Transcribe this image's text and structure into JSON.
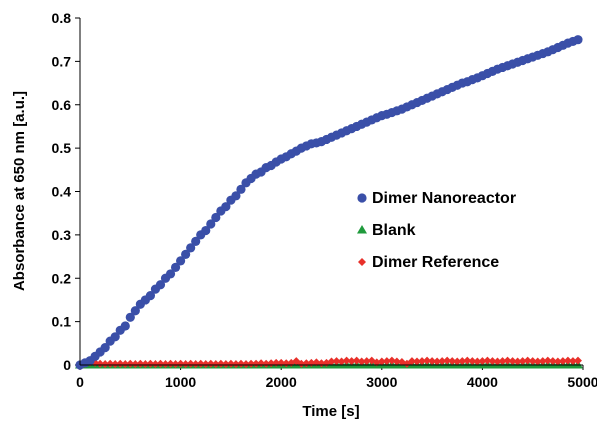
{
  "chart_data": {
    "type": "scatter",
    "title": "",
    "xlabel": "Time [s]",
    "ylabel": "Absorbance at 650 nm [a.u.]",
    "xlim": [
      0,
      5000
    ],
    "ylim": [
      0,
      0.8
    ],
    "x_ticks": [
      "0",
      "1000",
      "2000",
      "3000",
      "4000",
      "5000"
    ],
    "y_ticks": [
      "0",
      "0.1",
      "0.2",
      "0.3",
      "0.4",
      "0.5",
      "0.6",
      "0.7",
      "0.8"
    ],
    "grid": false,
    "legend_position": "center-right",
    "series": [
      {
        "name": "Dimer Nanoreactor",
        "marker": "circle",
        "color": "#3a4fa8",
        "x": [
          0,
          50,
          100,
          150,
          200,
          250,
          300,
          350,
          400,
          450,
          500,
          550,
          600,
          650,
          700,
          750,
          800,
          850,
          900,
          950,
          1000,
          1050,
          1100,
          1150,
          1200,
          1250,
          1300,
          1350,
          1400,
          1450,
          1500,
          1550,
          1600,
          1650,
          1700,
          1750,
          1800,
          1850,
          1900,
          1950,
          2000,
          2050,
          2100,
          2150,
          2200,
          2250,
          2300,
          2350,
          2400,
          2450,
          2500,
          2550,
          2600,
          2650,
          2700,
          2750,
          2800,
          2850,
          2900,
          2950,
          3000,
          3050,
          3100,
          3150,
          3200,
          3250,
          3300,
          3350,
          3400,
          3450,
          3500,
          3550,
          3600,
          3650,
          3700,
          3750,
          3800,
          3850,
          3900,
          3950,
          4000,
          4050,
          4100,
          4150,
          4200,
          4250,
          4300,
          4350,
          4400,
          4450,
          4500,
          4550,
          4600,
          4650,
          4700,
          4750,
          4800,
          4850,
          4900,
          4950
        ],
        "y": [
          0.0,
          0.005,
          0.01,
          0.02,
          0.03,
          0.04,
          0.055,
          0.065,
          0.08,
          0.09,
          0.11,
          0.125,
          0.14,
          0.15,
          0.16,
          0.175,
          0.185,
          0.2,
          0.21,
          0.225,
          0.24,
          0.255,
          0.27,
          0.285,
          0.3,
          0.31,
          0.325,
          0.34,
          0.355,
          0.365,
          0.38,
          0.39,
          0.405,
          0.42,
          0.43,
          0.44,
          0.445,
          0.455,
          0.46,
          0.468,
          0.475,
          0.48,
          0.487,
          0.493,
          0.5,
          0.505,
          0.51,
          0.512,
          0.515,
          0.52,
          0.525,
          0.53,
          0.535,
          0.54,
          0.545,
          0.55,
          0.555,
          0.56,
          0.565,
          0.57,
          0.575,
          0.578,
          0.582,
          0.586,
          0.59,
          0.595,
          0.6,
          0.605,
          0.61,
          0.615,
          0.62,
          0.625,
          0.63,
          0.635,
          0.64,
          0.645,
          0.65,
          0.653,
          0.658,
          0.662,
          0.667,
          0.672,
          0.677,
          0.682,
          0.686,
          0.69,
          0.694,
          0.698,
          0.702,
          0.706,
          0.71,
          0.714,
          0.718,
          0.722,
          0.727,
          0.732,
          0.737,
          0.742,
          0.746,
          0.75
        ]
      },
      {
        "name": "Blank",
        "marker": "triangle",
        "color": "#1f9a3c",
        "x": [
          0,
          50,
          100,
          150,
          200,
          250,
          300,
          350,
          400,
          450,
          500,
          550,
          600,
          650,
          700,
          750,
          800,
          850,
          900,
          950,
          1000,
          1050,
          1100,
          1150,
          1200,
          1250,
          1300,
          1350,
          1400,
          1450,
          1500,
          1550,
          1600,
          1650,
          1700,
          1750,
          1800,
          1850,
          1900,
          1950,
          2000,
          2050,
          2100,
          2150,
          2200,
          2250,
          2300,
          2350,
          2400,
          2450,
          2500,
          2550,
          2600,
          2650,
          2700,
          2750,
          2800,
          2850,
          2900,
          2950,
          3000,
          3050,
          3100,
          3150,
          3200,
          3250,
          3300,
          3350,
          3400,
          3450,
          3500,
          3550,
          3600,
          3650,
          3700,
          3750,
          3800,
          3850,
          3900,
          3950,
          4000,
          4050,
          4100,
          4150,
          4200,
          4250,
          4300,
          4350,
          4400,
          4450,
          4500,
          4550,
          4600,
          4650,
          4700,
          4750,
          4800,
          4850,
          4900,
          4950
        ],
        "y": [
          0.0,
          0.0,
          0.0,
          0.0,
          0.0,
          0.0,
          0.0,
          0.0,
          0.0,
          0.0,
          0.0,
          0.0,
          0.0,
          0.0,
          0.0,
          0.0,
          0.0,
          0.0,
          0.0,
          0.0,
          0.0,
          0.0,
          0.0,
          0.0,
          0.0,
          0.0,
          0.0,
          0.0,
          0.0,
          0.0,
          0.0,
          0.0,
          0.0,
          0.0,
          0.0,
          0.0,
          0.0,
          0.0,
          0.0,
          0.0,
          0.0,
          0.0,
          0.0,
          0.0,
          0.0,
          0.0,
          0.0,
          0.0,
          0.0,
          0.0,
          0.0,
          0.0,
          0.0,
          0.0,
          0.0,
          0.0,
          0.0,
          0.0,
          0.0,
          0.0,
          0.0,
          0.0,
          0.0,
          0.0,
          0.0,
          0.0,
          0.0,
          0.0,
          0.0,
          0.0,
          0.0,
          0.0,
          0.0,
          0.0,
          0.0,
          0.0,
          0.0,
          0.0,
          0.0,
          0.0,
          0.0,
          0.0,
          0.0,
          0.0,
          0.0,
          0.0,
          0.0,
          0.0,
          0.0,
          0.0,
          0.0,
          0.0,
          0.0,
          0.0,
          0.0,
          0.0,
          0.0,
          0.0,
          0.0,
          0.0
        ]
      },
      {
        "name": "Dimer Reference",
        "marker": "diamond",
        "color": "#e8302a",
        "x": [
          0,
          50,
          100,
          150,
          200,
          250,
          300,
          350,
          400,
          450,
          500,
          550,
          600,
          650,
          700,
          750,
          800,
          850,
          900,
          950,
          1000,
          1050,
          1100,
          1150,
          1200,
          1250,
          1300,
          1350,
          1400,
          1450,
          1500,
          1550,
          1600,
          1650,
          1700,
          1750,
          1800,
          1850,
          1900,
          1950,
          2000,
          2050,
          2100,
          2150,
          2200,
          2250,
          2300,
          2350,
          2400,
          2450,
          2500,
          2550,
          2600,
          2650,
          2700,
          2750,
          2800,
          2850,
          2900,
          2950,
          3000,
          3050,
          3100,
          3150,
          3200,
          3250,
          3300,
          3350,
          3400,
          3450,
          3500,
          3550,
          3600,
          3650,
          3700,
          3750,
          3800,
          3850,
          3900,
          3950,
          4000,
          4050,
          4100,
          4150,
          4200,
          4250,
          4300,
          4350,
          4400,
          4450,
          4500,
          4550,
          4600,
          4650,
          4700,
          4750,
          4800,
          4850,
          4900,
          4950
        ],
        "y": [
          0.002,
          0.003,
          0.006,
          0.005,
          0.003,
          0.002,
          0.003,
          0.002,
          0.003,
          0.002,
          0.003,
          0.002,
          0.003,
          0.002,
          0.003,
          0.002,
          0.003,
          0.002,
          0.003,
          0.002,
          0.003,
          0.002,
          0.003,
          0.002,
          0.003,
          0.002,
          0.003,
          0.002,
          0.003,
          0.002,
          0.003,
          0.002,
          0.003,
          0.002,
          0.003,
          0.003,
          0.004,
          0.003,
          0.004,
          0.005,
          0.005,
          0.004,
          0.005,
          0.009,
          0.003,
          0.004,
          0.005,
          0.006,
          0.004,
          0.005,
          0.008,
          0.009,
          0.008,
          0.01,
          0.009,
          0.01,
          0.008,
          0.009,
          0.01,
          0.006,
          0.008,
          0.009,
          0.01,
          0.008,
          0.007,
          0.003,
          0.009,
          0.008,
          0.009,
          0.01,
          0.009,
          0.008,
          0.009,
          0.01,
          0.009,
          0.008,
          0.009,
          0.01,
          0.009,
          0.008,
          0.009,
          0.01,
          0.009,
          0.008,
          0.009,
          0.01,
          0.009,
          0.008,
          0.009,
          0.01,
          0.009,
          0.008,
          0.009,
          0.01,
          0.009,
          0.008,
          0.009,
          0.01,
          0.009,
          0.01
        ]
      }
    ]
  }
}
